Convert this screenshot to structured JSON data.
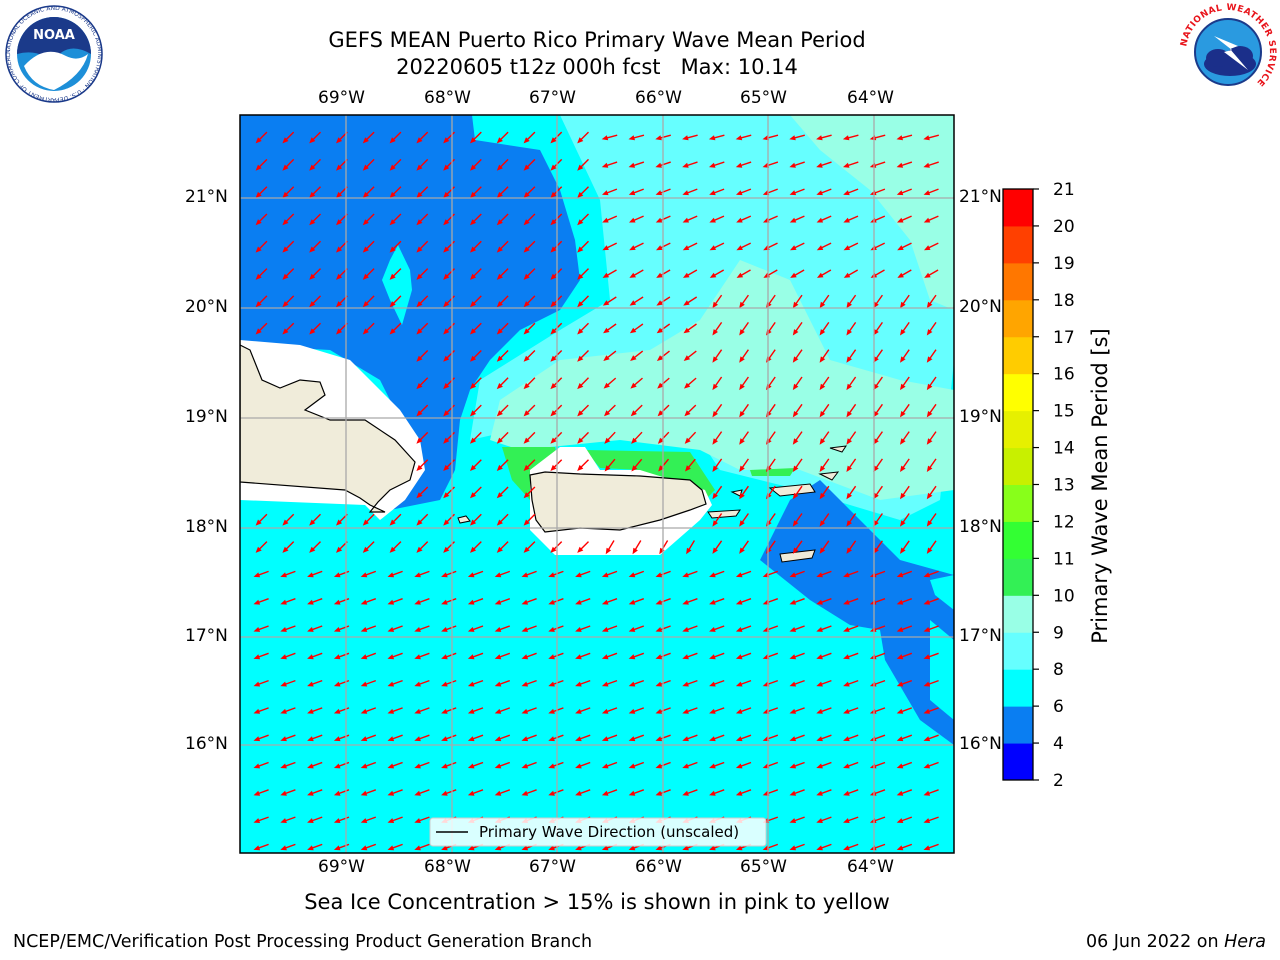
{
  "title": {
    "line1": "GEFS MEAN Puerto Rico Primary Wave Mean Period",
    "line2": "20220605 t12z 000h fcst   Max: 10.14"
  },
  "logos": {
    "noaa_text": "NOAA",
    "noaa_ring": "NATIONAL OCEANIC AND ATMOSPHERIC ADMINISTRATION · U.S. DEPARTMENT OF COMMERCE",
    "nws_ring": "NATIONAL WEATHER SERVICE"
  },
  "map": {
    "lon_ticks": [
      "69°W",
      "68°W",
      "67°W",
      "66°W",
      "65°W",
      "64°W"
    ],
    "lat_ticks": [
      "21°N",
      "20°N",
      "19°N",
      "18°N",
      "17°N",
      "16°N"
    ],
    "legend_label": "Primary Wave Direction (unscaled)",
    "colors": {
      "deep_blue": "#0a7ef2",
      "cyan": "#00ffff",
      "light_cyan": "#66ffff",
      "aqua": "#99ffe6",
      "green": "#33f055",
      "land": "#f0ecda",
      "arrow": "#ff0000"
    }
  },
  "colorbar": {
    "label": "Primary Wave Mean Period [s]",
    "ticks": [
      "2",
      "4",
      "6",
      "8",
      "9",
      "10",
      "11",
      "12",
      "13",
      "14",
      "15",
      "16",
      "17",
      "18",
      "19",
      "20",
      "21"
    ],
    "colors": [
      "#0000ff",
      "#0a7ef2",
      "#00ffff",
      "#66ffff",
      "#99ffe6",
      "#33f055",
      "#33ff33",
      "#88ff1a",
      "#c8f000",
      "#e6f000",
      "#ffff00",
      "#ffcc00",
      "#ffa500",
      "#ff7700",
      "#ff4000",
      "#ff0000"
    ]
  },
  "footer": {
    "note": "Sea Ice Concentration > 15% is shown in pink to yellow",
    "left": "NCEP/EMC/Verification Post Processing Product Generation Branch",
    "right_date": "06 Jun 2022 on ",
    "right_machine": "Hera"
  }
}
